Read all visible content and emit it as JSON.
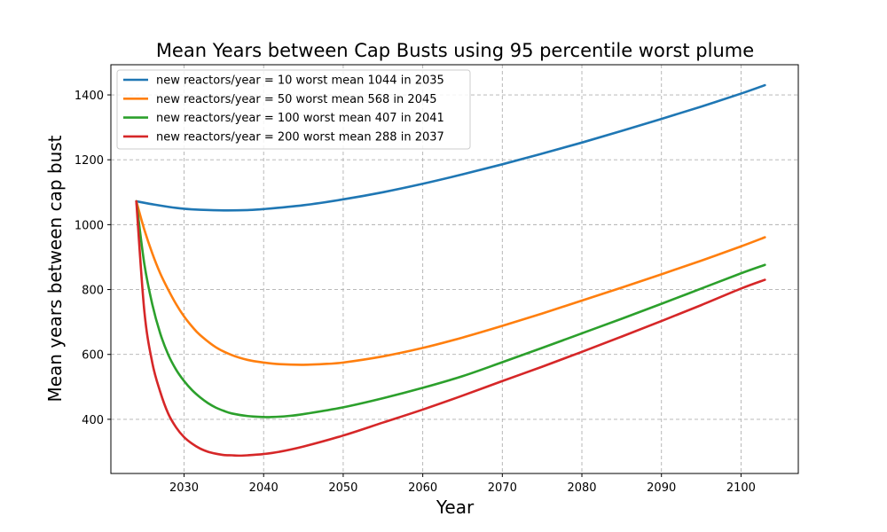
{
  "chart_data": {
    "type": "line",
    "title": "Mean Years between Cap Busts using 95 percentile worst plume",
    "xlabel": "Year",
    "ylabel": "Mean years between cap bust",
    "xlim": [
      2020.8,
      2107.2
    ],
    "ylim": [
      233,
      1493
    ],
    "xticks": [
      2030,
      2040,
      2050,
      2060,
      2070,
      2080,
      2090,
      2100
    ],
    "yticks": [
      400,
      600,
      800,
      1000,
      1200,
      1400
    ],
    "grid": true,
    "legend_position": "top-left",
    "series": [
      {
        "name": "new reactors/year = 10 worst mean 1044 in 2035",
        "color": "#1f77b4",
        "x": [
          2024,
          2026,
          2028,
          2030,
          2032,
          2035,
          2038,
          2040,
          2045,
          2050,
          2055,
          2060,
          2065,
          2070,
          2075,
          2080,
          2085,
          2090,
          2095,
          2100,
          2103
        ],
        "y": [
          1072,
          1063,
          1055,
          1049,
          1046,
          1044,
          1045,
          1048,
          1060,
          1078,
          1100,
          1126,
          1155,
          1186,
          1219,
          1253,
          1289,
          1326,
          1364,
          1404,
          1430
        ]
      },
      {
        "name": "new reactors/year = 50 worst mean 568 in 2045",
        "color": "#ff7f0e",
        "x": [
          2024,
          2025,
          2026,
          2027,
          2028,
          2029,
          2030,
          2031,
          2032,
          2034,
          2036,
          2038,
          2040,
          2042,
          2045,
          2048,
          2050,
          2055,
          2060,
          2065,
          2070,
          2075,
          2080,
          2085,
          2090,
          2095,
          2100,
          2103
        ],
        "y": [
          1072,
          985,
          912,
          850,
          800,
          755,
          717,
          686,
          660,
          622,
          598,
          583,
          575,
          570,
          568,
          571,
          575,
          594,
          620,
          652,
          688,
          726,
          766,
          806,
          847,
          889,
          933,
          961
        ]
      },
      {
        "name": "new reactors/year = 100 worst mean 407 in 2041",
        "color": "#2ca02c",
        "x": [
          2024,
          2025,
          2026,
          2027,
          2028,
          2029,
          2030,
          2031,
          2032,
          2033,
          2034,
          2035,
          2036,
          2038,
          2040,
          2041,
          2043,
          2045,
          2050,
          2055,
          2060,
          2065,
          2070,
          2075,
          2080,
          2085,
          2090,
          2095,
          2100,
          2103
        ],
        "y": [
          1072,
          880,
          755,
          665,
          600,
          553,
          518,
          490,
          468,
          450,
          436,
          426,
          418,
          410,
          407,
          407,
          410,
          416,
          437,
          465,
          497,
          533,
          576,
          620,
          665,
          710,
          756,
          803,
          850,
          876
        ]
      },
      {
        "name": "new reactors/year = 200 worst mean 288 in 2037",
        "color": "#d62728",
        "x": [
          2024,
          2025,
          2026,
          2027,
          2028,
          2029,
          2030,
          2031,
          2032,
          2033,
          2034,
          2035,
          2036,
          2037,
          2038,
          2040,
          2042,
          2045,
          2050,
          2055,
          2060,
          2065,
          2070,
          2075,
          2080,
          2085,
          2090,
          2095,
          2100,
          2103
        ],
        "y": [
          1072,
          735,
          575,
          485,
          418,
          375,
          345,
          325,
          310,
          300,
          294,
          290,
          289,
          288,
          289,
          293,
          300,
          316,
          350,
          390,
          430,
          473,
          518,
          562,
          608,
          655,
          703,
          752,
          803,
          830
        ]
      }
    ]
  }
}
